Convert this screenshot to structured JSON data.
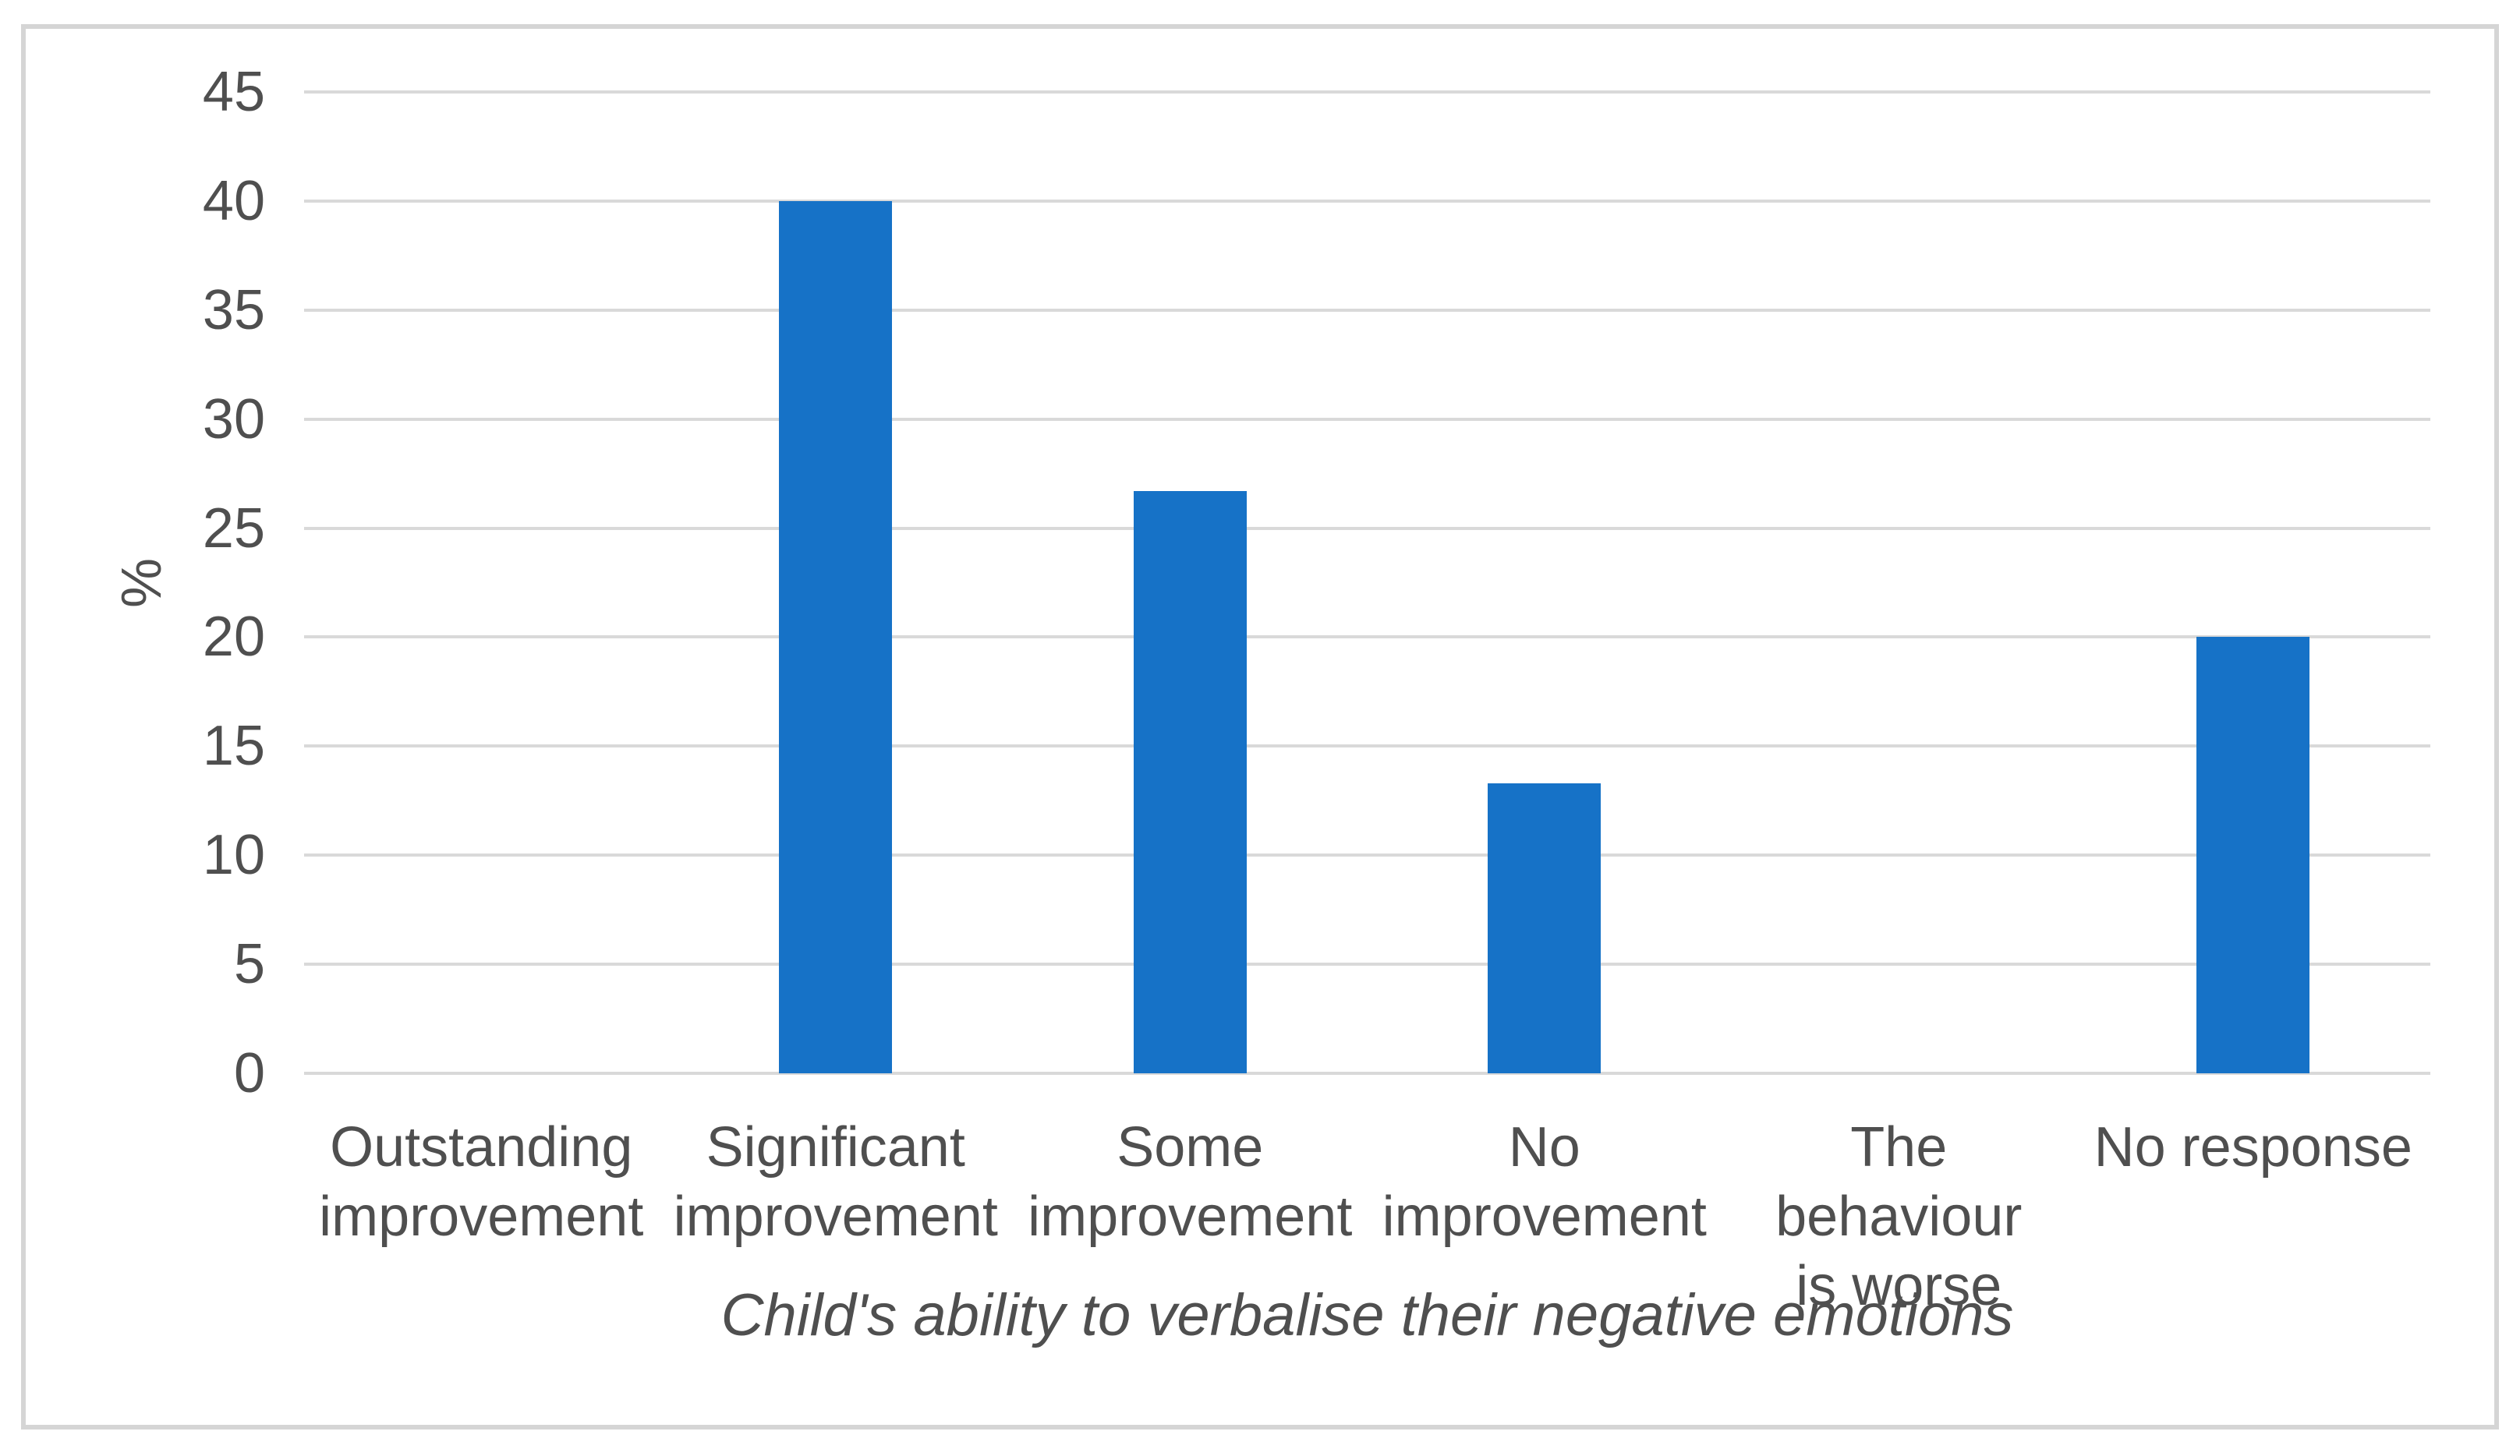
{
  "chart_data": {
    "type": "bar",
    "title": "",
    "xlabel": "Child's ability to verbalise their negative emotions",
    "ylabel": "%",
    "categories": [
      "Outstanding improvement",
      "Significant improvement",
      "Some improvement",
      "No improvement",
      "The behaviour is worse",
      "No response"
    ],
    "category_label_lines": [
      [
        "Outstanding",
        "improvement"
      ],
      [
        "Significant",
        "improvement"
      ],
      [
        "Some",
        "improvement"
      ],
      [
        "No",
        "improvement"
      ],
      [
        "The behaviour",
        "is worse"
      ],
      [
        "No response"
      ]
    ],
    "values": [
      0,
      40,
      26.7,
      13.3,
      0,
      20
    ],
    "ylim": [
      0,
      45
    ],
    "ytick_step": 5,
    "yticks": [
      45,
      40,
      35,
      30,
      25,
      20,
      15,
      10,
      5,
      0
    ],
    "grid": true,
    "legend": false,
    "colors": {
      "bar": "#1672c7",
      "gridline": "#d9d9d9",
      "axis_text": "#4f4f4f",
      "frame_border": "#d5d5d5",
      "background": "#ffffff"
    }
  }
}
